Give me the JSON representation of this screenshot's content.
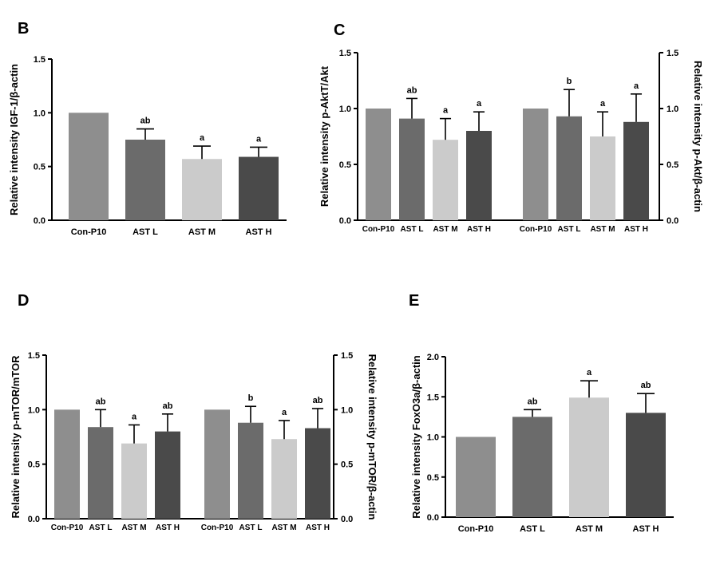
{
  "figure": {
    "description_free": true
  },
  "colors": [
    "#8e8e8e",
    "#6b6b6b",
    "#cbcbcb",
    "#4a4a4a"
  ],
  "chart_data": [
    {
      "id": "B",
      "panel_label": "B",
      "type": "bar",
      "categories": [
        "Con-P10",
        "AST L",
        "AST M",
        "AST H"
      ],
      "values": [
        1.0,
        0.75,
        0.57,
        0.59
      ],
      "errors": [
        0,
        0.1,
        0.12,
        0.09
      ],
      "annotations": [
        "",
        "ab",
        "a",
        "a"
      ],
      "ylabel": "Relative intensity IGF-1/β-actin",
      "ylim": [
        0,
        1.5
      ],
      "yticks": [
        "0.0",
        "0.5",
        "1.0",
        "1.5"
      ]
    },
    {
      "id": "C",
      "panel_label": "C",
      "type": "bar",
      "groups": [
        {
          "categories": [
            "Con-P10",
            "AST L",
            "AST M",
            "AST H"
          ],
          "values": [
            1.0,
            0.91,
            0.72,
            0.8
          ],
          "errors": [
            0,
            0.18,
            0.19,
            0.17
          ],
          "annotations": [
            "",
            "ab",
            "a",
            "a"
          ],
          "ylabel": "Relative intensity p-AktT/Akt"
        },
        {
          "categories": [
            "Con-P10",
            "AST L",
            "AST M",
            "AST H"
          ],
          "values": [
            1.0,
            0.93,
            0.75,
            0.88
          ],
          "errors": [
            0,
            0.24,
            0.22,
            0.25
          ],
          "annotations": [
            "",
            "b",
            "a",
            "a"
          ],
          "ylabel": "Relative intensity p-Akt/β-actin"
        }
      ],
      "ylim": [
        0,
        1.5
      ],
      "yticks": [
        "0.0",
        "0.5",
        "1.0",
        "1.5"
      ]
    },
    {
      "id": "D",
      "panel_label": "D",
      "type": "bar",
      "groups": [
        {
          "categories": [
            "Con-P10",
            "AST L",
            "AST M",
            "AST H"
          ],
          "values": [
            1.0,
            0.84,
            0.69,
            0.8
          ],
          "errors": [
            0,
            0.16,
            0.17,
            0.16
          ],
          "annotations": [
            "",
            "ab",
            "a",
            "ab"
          ],
          "ylabel": "Relative intensity p-mTOR/mTOR"
        },
        {
          "categories": [
            "Con-P10",
            "AST L",
            "AST M",
            "AST H"
          ],
          "values": [
            1.0,
            0.88,
            0.73,
            0.83
          ],
          "errors": [
            0,
            0.15,
            0.17,
            0.18
          ],
          "annotations": [
            "",
            "b",
            "a",
            "ab"
          ],
          "ylabel": "Relative intensity p-mTOR/β-actin"
        }
      ],
      "ylim": [
        0,
        1.5
      ],
      "yticks": [
        "0.0",
        "0.5",
        "1.0",
        "1.5"
      ]
    },
    {
      "id": "E",
      "panel_label": "E",
      "type": "bar",
      "categories": [
        "Con-P10",
        "AST L",
        "AST M",
        "AST H"
      ],
      "values": [
        1.0,
        1.25,
        1.49,
        1.3
      ],
      "errors": [
        0,
        0.09,
        0.21,
        0.24
      ],
      "annotations": [
        "",
        "ab",
        "a",
        "ab"
      ],
      "ylabel": "Relative intensity FoxO3a/β-actin",
      "ylim": [
        0,
        2.0
      ],
      "yticks": [
        "0.0",
        "0.5",
        "1.0",
        "1.5",
        "2.0"
      ]
    }
  ]
}
